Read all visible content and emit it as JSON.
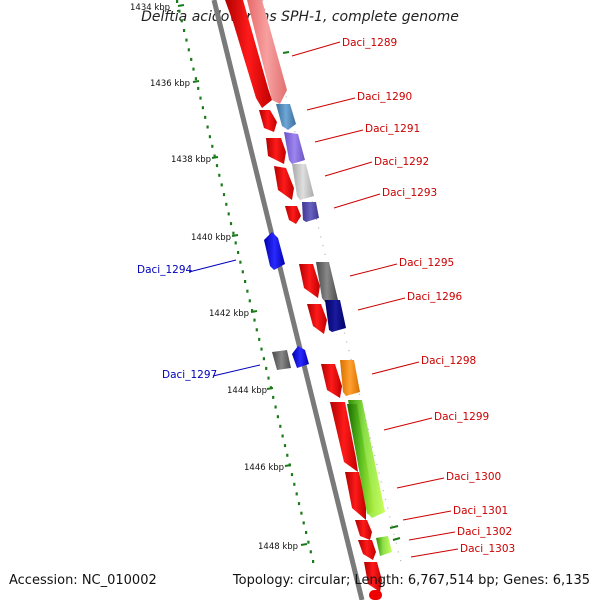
{
  "title": "Delftia acidovorans SPH-1, complete genome",
  "accession": "Accession: NC_010002",
  "summary": "Topology: circular; Length: 6,767,514 bp; Genes: 6,135",
  "ticks": [
    "1434 kbp",
    "1436 kbp",
    "1438 kbp",
    "1440 kbp",
    "1442 kbp",
    "1444 kbp",
    "1446 kbp",
    "1448 kbp"
  ],
  "genes": [
    {
      "name": "Daci_1289",
      "strand": "plus"
    },
    {
      "name": "Daci_1290",
      "strand": "plus"
    },
    {
      "name": "Daci_1291",
      "strand": "plus"
    },
    {
      "name": "Daci_1292",
      "strand": "plus"
    },
    {
      "name": "Daci_1293",
      "strand": "plus"
    },
    {
      "name": "Daci_1294",
      "strand": "minus"
    },
    {
      "name": "Daci_1295",
      "strand": "plus"
    },
    {
      "name": "Daci_1296",
      "strand": "plus"
    },
    {
      "name": "Daci_1297",
      "strand": "minus"
    },
    {
      "name": "Daci_1298",
      "strand": "plus"
    },
    {
      "name": "Daci_1299",
      "strand": "plus"
    },
    {
      "name": "Daci_1300",
      "strand": "plus"
    },
    {
      "name": "Daci_1301",
      "strand": "plus"
    },
    {
      "name": "Daci_1302",
      "strand": "plus"
    },
    {
      "name": "Daci_1303",
      "strand": "plus"
    }
  ],
  "colors": {
    "cds": "#ee0000",
    "minus_gene": "#0000ee",
    "backbone": "#888888",
    "tick": "#1a7a1a",
    "plus_label": "#cc0000",
    "minus_label": "#0000bb"
  }
}
